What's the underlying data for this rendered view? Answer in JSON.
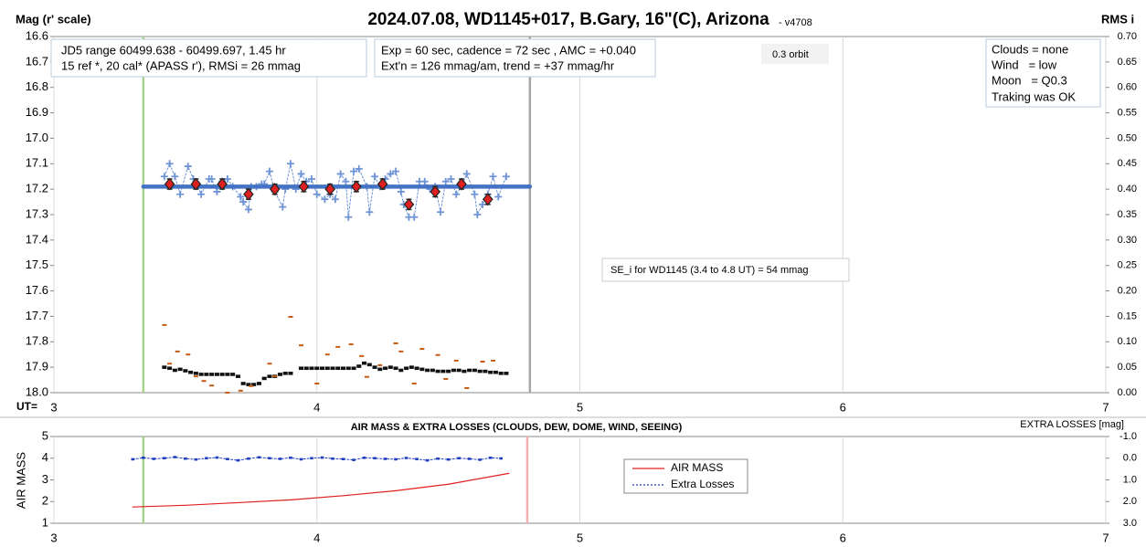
{
  "chart_data": [
    {
      "type": "scatter",
      "title": "2024.07.08, WD1145+017, B.Gary, 16\"(C), Arizona",
      "subtitle": "- v4708",
      "y_label": "Mag (r' scale)",
      "y2_label": "RMS i",
      "x_label": "UT=",
      "xlim": [
        3,
        7
      ],
      "xticks": [
        3,
        4,
        5,
        6,
        7
      ],
      "ylim": [
        16.6,
        18.0
      ],
      "y_inverted": true,
      "yticks": [
        16.6,
        16.7,
        16.8,
        16.9,
        {
          "value": 17.0,
          "label": "17.0"
        },
        17.1,
        17.2,
        17.3,
        17.4,
        17.5,
        17.6,
        17.7,
        17.8,
        17.9,
        {
          "value": 18.0,
          "label": "18.0"
        }
      ],
      "y2lim": [
        0,
        0.7
      ],
      "y2ticks": [
        {
          "value": 0.7,
          "label": "0.70"
        },
        0.65,
        {
          "value": 0.6,
          "label": "0.60"
        },
        0.55,
        {
          "value": 0.5,
          "label": "0.50"
        },
        0.45,
        {
          "value": 0.4,
          "label": "0.40"
        },
        0.35,
        {
          "value": 0.3,
          "label": "0.30"
        },
        0.25,
        {
          "value": 0.2,
          "label": "0.20"
        },
        0.15,
        {
          "value": 0.1,
          "label": "0.10"
        },
        0.05,
        {
          "value": 0,
          "label": "0.00"
        }
      ],
      "grid": "x",
      "vlines": [
        {
          "x": 3.34,
          "color": "#a9d18e"
        },
        {
          "x": 4.81,
          "color": "#a6a6a6"
        }
      ],
      "annotations": [
        {
          "lines": [
            "JD5 range 60499.638 - 60499.697, 1.45 hr",
            "15 ref *, 20 cal*  (APASS r'), RMSi = 26 mmag"
          ]
        },
        {
          "lines": [
            "Exp = 60 sec, cadence = 72 sec , AMC = +0.040",
            "Ext'n = 126 mmag/am, trend = +37 mmag/hr"
          ]
        },
        {
          "lines": [
            "0.3 orbit"
          ]
        },
        {
          "lines": [
            "Clouds = none",
            "Wind   = low",
            "Moon   = Q0.3",
            "Traking was OK"
          ]
        },
        {
          "lines": [
            "SE_i for WD1145 (3.4 to 4.8 UT) = 54 mmag"
          ]
        }
      ],
      "series": [
        {
          "color": "#6f94d6",
          "marker": "plus",
          "line": "dotted",
          "x": [
            3.42,
            3.44,
            3.46,
            3.48,
            3.51,
            3.53,
            3.56,
            3.59,
            3.6,
            3.62,
            3.64,
            3.66,
            3.68,
            3.71,
            3.72,
            3.74,
            3.75,
            3.77,
            3.79,
            3.8,
            3.82,
            3.84,
            3.87,
            3.88,
            3.9,
            3.92,
            3.94,
            3.96,
            3.98,
            4.0,
            4.03,
            4.05,
            4.07,
            4.09,
            4.11,
            4.12,
            4.14,
            4.16,
            4.19,
            4.2,
            4.22,
            4.24,
            4.26,
            4.28,
            4.3,
            4.32,
            4.33,
            4.35,
            4.37,
            4.39,
            4.41,
            4.43,
            4.45,
            4.47,
            4.49,
            4.51,
            4.53,
            4.55,
            4.57,
            4.6,
            4.61,
            4.63,
            4.65,
            4.67,
            4.69,
            4.72
          ],
          "values": [
            17.15,
            17.1,
            17.15,
            17.22,
            17.11,
            17.16,
            17.22,
            17.16,
            17.16,
            17.21,
            17.17,
            17.16,
            17.19,
            17.23,
            17.25,
            17.28,
            17.19,
            17.19,
            17.18,
            17.18,
            17.13,
            17.21,
            17.27,
            17.2,
            17.1,
            17.2,
            17.14,
            17.17,
            17.16,
            17.22,
            17.24,
            17.22,
            17.24,
            17.14,
            17.17,
            17.31,
            17.13,
            17.12,
            17.19,
            17.29,
            17.15,
            17.19,
            17.16,
            17.14,
            17.13,
            17.21,
            17.26,
            17.31,
            17.31,
            17.17,
            17.17,
            17.2,
            17.19,
            17.29,
            17.17,
            17.16,
            17.22,
            17.19,
            17.14,
            17.22,
            17.3,
            17.26,
            17.22,
            17.15,
            17.23,
            17.15
          ]
        },
        {
          "color": "#4472c4",
          "marker": "none",
          "line": "thick",
          "x": [
            3.34,
            4.81
          ],
          "values": [
            17.19,
            17.19
          ]
        },
        {
          "color": "#e02020",
          "marker": "diamond",
          "line": "none",
          "x": [
            3.44,
            3.54,
            3.64,
            3.74,
            3.84,
            3.95,
            4.05,
            4.15,
            4.25,
            4.35,
            4.45,
            4.55,
            4.65
          ],
          "values": [
            17.18,
            17.18,
            17.18,
            17.22,
            17.2,
            17.19,
            17.2,
            17.19,
            17.18,
            17.26,
            17.21,
            17.18,
            17.24
          ],
          "errors": [
            0.02,
            0.02,
            0.02,
            0.02,
            0.02,
            0.02,
            0.02,
            0.02,
            0.02,
            0.02,
            0.02,
            0.02,
            0.02
          ]
        },
        {
          "color": "#111111",
          "marker": "square",
          "line": "none",
          "axis": "y2",
          "x": [
            3.42,
            3.44,
            3.46,
            3.48,
            3.5,
            3.52,
            3.54,
            3.56,
            3.58,
            3.6,
            3.62,
            3.64,
            3.66,
            3.68,
            3.7,
            3.72,
            3.74,
            3.76,
            3.78,
            3.8,
            3.82,
            3.84,
            3.86,
            3.88,
            3.9,
            3.94,
            3.96,
            3.98,
            4.0,
            4.02,
            4.04,
            4.06,
            4.08,
            4.1,
            4.12,
            4.14,
            4.16,
            4.18,
            4.2,
            4.22,
            4.24,
            4.26,
            4.28,
            4.3,
            4.32,
            4.34,
            4.36,
            4.38,
            4.4,
            4.42,
            4.44,
            4.46,
            4.48,
            4.5,
            4.52,
            4.54,
            4.56,
            4.58,
            4.6,
            4.62,
            4.64,
            4.66,
            4.68,
            4.7,
            4.72
          ],
          "values": [
            0.05,
            0.048,
            0.044,
            0.046,
            0.043,
            0.04,
            0.038,
            0.036,
            0.036,
            0.036,
            0.036,
            0.036,
            0.036,
            0.036,
            0.032,
            0.018,
            0.016,
            0.016,
            0.018,
            0.028,
            0.032,
            0.032,
            0.036,
            0.038,
            0.038,
            0.048,
            0.048,
            0.048,
            0.048,
            0.048,
            0.048,
            0.048,
            0.048,
            0.048,
            0.048,
            0.048,
            0.052,
            0.058,
            0.055,
            0.05,
            0.046,
            0.048,
            0.05,
            0.048,
            0.044,
            0.048,
            0.05,
            0.048,
            0.046,
            0.044,
            0.044,
            0.042,
            0.042,
            0.042,
            0.044,
            0.044,
            0.042,
            0.044,
            0.044,
            0.042,
            0.042,
            0.04,
            0.04,
            0.038,
            0.038
          ]
        },
        {
          "color": "#c55a11",
          "marker": "dash",
          "line": "none",
          "axis": "y2",
          "x": [
            3.42,
            3.44,
            3.47,
            3.51,
            3.54,
            3.57,
            3.6,
            3.66,
            3.71,
            3.75,
            3.82,
            3.84,
            3.9,
            3.94,
            4.0,
            4.04,
            4.08,
            4.13,
            4.17,
            4.19,
            4.24,
            4.3,
            4.32,
            4.37,
            4.4,
            4.46,
            4.49,
            4.53,
            4.57,
            4.63,
            4.67
          ],
          "values": [
            0.133,
            0.057,
            0.081,
            0.075,
            0.032,
            0.023,
            0.014,
            0.0,
            0.004,
            0.013,
            0.057,
            0.032,
            0.149,
            0.093,
            0.018,
            0.075,
            0.09,
            0.095,
            0.072,
            0.031,
            0.054,
            0.097,
            0.081,
            0.018,
            0.086,
            0.074,
            0.027,
            0.063,
            0.009,
            0.061,
            0.063
          ]
        }
      ]
    },
    {
      "type": "line",
      "title": "AIR MASS & EXTRA LOSSES (CLOUDS, DEW, DOME, WIND, SEEING)",
      "y_label": "AIR MASS",
      "y2_label": "EXTRA LOSSES [mag]",
      "xlim": [
        3,
        7
      ],
      "xticks": [
        3,
        4,
        5,
        6,
        7
      ],
      "ylim": [
        1,
        5
      ],
      "yticks": [
        1,
        2,
        3,
        4,
        5
      ],
      "y2lim": [
        -1,
        3
      ],
      "y2_inverted": true,
      "y2ticks": [
        {
          "value": -1,
          "label": "-1.0"
        },
        {
          "value": 0,
          "label": "0.0"
        },
        {
          "value": 1,
          "label": "1.0"
        },
        {
          "value": 2,
          "label": "2.0"
        },
        {
          "value": 3,
          "label": "3.0"
        }
      ],
      "grid": "x",
      "vlines": [
        {
          "x": 3.34,
          "color": "#a9d18e"
        },
        {
          "x": 4.8,
          "color": "#f4b0b0"
        }
      ],
      "series": [
        {
          "name": "AIR MASS",
          "color": "#e02020",
          "marker": "none",
          "line": "solid",
          "x": [
            3.3,
            3.5,
            3.7,
            3.9,
            4.1,
            4.3,
            4.5,
            4.73
          ],
          "values": [
            1.75,
            1.83,
            1.95,
            2.08,
            2.27,
            2.5,
            2.8,
            3.3
          ]
        },
        {
          "name": "Extra Losses",
          "color": "#1f3fbf",
          "marker": "square",
          "line": "dotted",
          "axis": "y2",
          "x": [
            3.3,
            3.34,
            3.38,
            3.42,
            3.46,
            3.5,
            3.54,
            3.58,
            3.62,
            3.66,
            3.7,
            3.74,
            3.78,
            3.82,
            3.86,
            3.9,
            3.94,
            3.98,
            4.02,
            4.06,
            4.1,
            4.14,
            4.18,
            4.22,
            4.26,
            4.3,
            4.34,
            4.38,
            4.42,
            4.46,
            4.5,
            4.54,
            4.58,
            4.62,
            4.66,
            4.7
          ],
          "values": [
            0.05,
            -0.02,
            0.03,
            0.0,
            -0.05,
            0.02,
            0.06,
            0.0,
            -0.03,
            0.04,
            0.1,
            0.02,
            -0.04,
            0.0,
            0.03,
            -0.02,
            0.05,
            0.0,
            -0.03,
            0.02,
            0.04,
            0.08,
            -0.02,
            0.0,
            0.03,
            0.05,
            -0.01,
            0.04,
            0.1,
            0.02,
            0.06,
            0.0,
            0.03,
            0.07,
            -0.02,
            0.01
          ]
        }
      ]
    }
  ]
}
